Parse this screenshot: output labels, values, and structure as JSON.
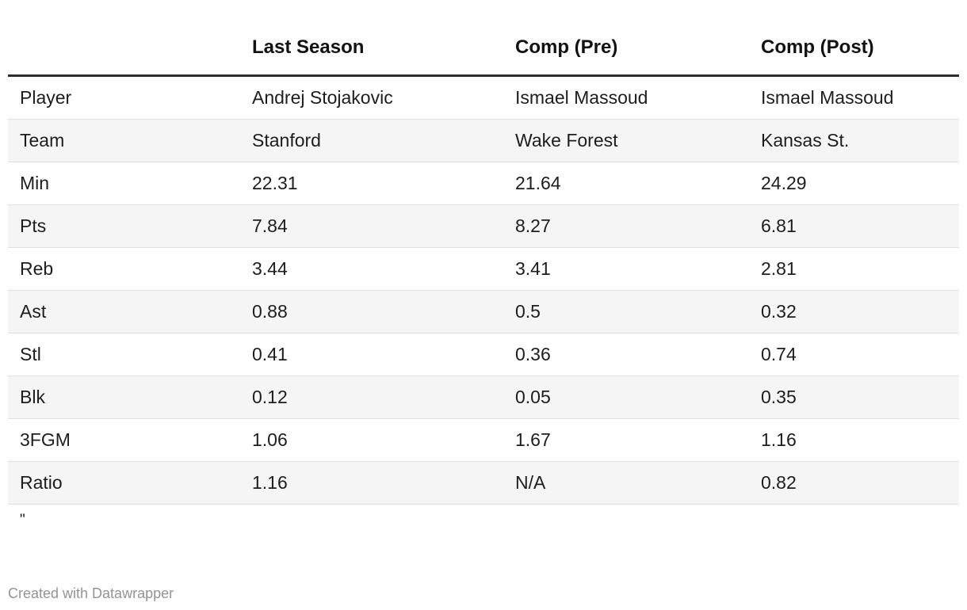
{
  "chart_data": {
    "type": "table",
    "columns": [
      "",
      "Last Season",
      "Comp (Pre)",
      "Comp (Post)"
    ],
    "rows": [
      [
        "Player",
        "Andrej Stojakovic",
        "Ismael Massoud",
        "Ismael Massoud"
      ],
      [
        "Team",
        "Stanford",
        "Wake Forest",
        "Kansas St."
      ],
      [
        "Min",
        "22.31",
        "21.64",
        "24.29"
      ],
      [
        "Pts",
        "7.84",
        "8.27",
        "6.81"
      ],
      [
        "Reb",
        "3.44",
        "3.41",
        "2.81"
      ],
      [
        "Ast",
        "0.88",
        "0.5",
        "0.32"
      ],
      [
        "Stl",
        "0.41",
        "0.36",
        "0.74"
      ],
      [
        "Blk",
        "0.12",
        "0.05",
        "0.35"
      ],
      [
        "3FGM",
        "1.06",
        "1.67",
        "1.16"
      ],
      [
        "Ratio",
        "1.16",
        "N/A",
        "0.82"
      ]
    ],
    "title": "",
    "legend_position": "none",
    "grid": "row-stripes",
    "layout_hints": {
      "first_row_stripe": "white",
      "header_rule": "thick-dark"
    }
  },
  "note": "\"",
  "footer": {
    "attribution": "Created with Datawrapper"
  },
  "colors": {
    "header_rule": "#2e2e2e",
    "stripe": "#f5f5f5",
    "row_border": "#e0e0e0",
    "text": "#1d1d1d",
    "header_text": "#121212",
    "footer_text": "#949494"
  }
}
